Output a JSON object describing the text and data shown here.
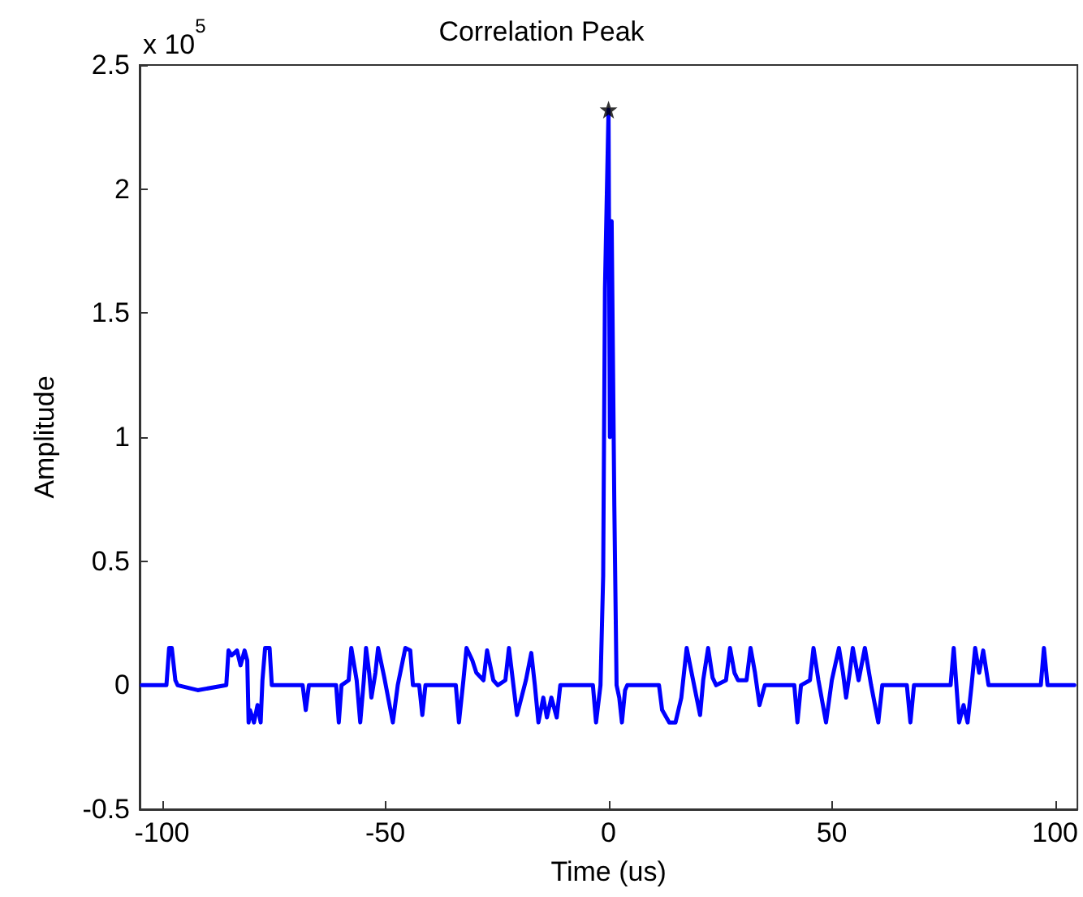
{
  "chart_data": {
    "type": "line",
    "title": "Correlation Peak",
    "xlabel": "Time (us)",
    "ylabel": "Amplitude",
    "annotations": [
      "x 10$^{5}$"
    ],
    "xlim": [
      -105,
      105
    ],
    "xticks": [
      -100,
      -50,
      0,
      50,
      100
    ],
    "ylim": [
      -0.5,
      2.5
    ],
    "yticks": [
      -0.5,
      0,
      0.5,
      1,
      1.5,
      2,
      2.5
    ],
    "grid": false,
    "series": [
      {
        "color": "#0000ff",
        "marker": "none",
        "line_style": "solid",
        "x": [
          -104.5,
          -99,
          -98.4,
          -97.8,
          -97,
          -96.5,
          -92,
          -85.6,
          -85.1,
          -84.4,
          -83.2,
          -82.4,
          -81.5,
          -80.9,
          -80.6,
          -80.3,
          -79.4,
          -78.6,
          -77.9,
          -77.5,
          -76.9,
          -75.9,
          -75.4,
          -68.5,
          -67.8,
          -67.1,
          -61,
          -60.4,
          -59.8,
          -58.2,
          -57.6,
          -56.4,
          -55.6,
          -54.8,
          -54.3,
          -53.6,
          -53.1,
          -52.2,
          -51.6,
          -50.2,
          -48.3,
          -47.2,
          -45.5,
          -44.4,
          -43.8,
          -42.4,
          -41.7,
          -41,
          -34.2,
          -33.5,
          -32.5,
          -31.8,
          -30.5,
          -29.6,
          -28,
          -27.2,
          -25.8,
          -24.8,
          -23.1,
          -22.3,
          -21.3,
          -20.5,
          -18.5,
          -17.3,
          -16.5,
          -15.7,
          -14.6,
          -13.8,
          -12.8,
          -11.6,
          -10.8,
          -3.5,
          -2.8,
          -1.8,
          -1.2,
          -0.8,
          0,
          0.3,
          0.7,
          1.3,
          1.8,
          2.4,
          3,
          3.7,
          4.2,
          11.3,
          12,
          13.6,
          15,
          16.3,
          17.5,
          18.6,
          20.5,
          21.2,
          22.3,
          23.3,
          24.1,
          26.3,
          27.2,
          28.2,
          29,
          30.9,
          31.8,
          32.8,
          33.8,
          35,
          41.6,
          42.3,
          43.1,
          45.1,
          45.9,
          47,
          48.7,
          50,
          51.6,
          52.5,
          53.2,
          54,
          54.7,
          56,
          57.4,
          58.8,
          60.4,
          61.3,
          66.8,
          67.6,
          68.4,
          76.6,
          77.3,
          78.5,
          79.5,
          80.4,
          81.3,
          82.1,
          83,
          83.9,
          85.1,
          96.8,
          97.5,
          98.3,
          99,
          104.3
        ],
        "values": [
          0,
          0,
          0.15,
          0.15,
          0.02,
          0,
          -0.02,
          0,
          0.14,
          0.12,
          0.14,
          0.08,
          0.14,
          0.1,
          -0.15,
          -0.1,
          -0.15,
          -0.08,
          -0.15,
          0.02,
          0.15,
          0.15,
          0,
          0,
          -0.1,
          0,
          0,
          -0.15,
          0,
          0.02,
          0.15,
          0.02,
          -0.15,
          0.02,
          0.15,
          0.05,
          -0.05,
          0.05,
          0.15,
          0.03,
          -0.15,
          0,
          0.15,
          0.14,
          0,
          0,
          -0.12,
          0,
          0,
          -0.15,
          0.02,
          0.15,
          0.1,
          0.05,
          0.02,
          0.14,
          0.02,
          0,
          0.02,
          0.15,
          0,
          -0.12,
          0.02,
          0.13,
          0,
          -0.15,
          -0.05,
          -0.13,
          -0.05,
          -0.13,
          0,
          0,
          -0.15,
          0,
          0.44,
          1.6,
          2.32,
          1,
          1.87,
          0.72,
          0,
          -0.05,
          -0.15,
          -0.02,
          0,
          0,
          -0.1,
          -0.15,
          -0.15,
          -0.05,
          0.15,
          0.05,
          -0.12,
          0.02,
          0.15,
          0.03,
          0,
          0.02,
          0.15,
          0.05,
          0.02,
          0.02,
          0.15,
          0.05,
          -0.08,
          0,
          0,
          -0.15,
          0,
          0.02,
          0.15,
          0.02,
          -0.15,
          0.02,
          0.15,
          0.05,
          -0.05,
          0.05,
          0.15,
          0.02,
          0.15,
          0,
          -0.15,
          0,
          0,
          -0.15,
          0,
          0,
          0.15,
          -0.15,
          -0.08,
          -0.15,
          0,
          0.15,
          0.05,
          0.14,
          0,
          0,
          0.15,
          0,
          0,
          0
        ]
      },
      {
        "type": "scatter",
        "color": "#000000",
        "marker": "star",
        "x": [
          0
        ],
        "values": [
          2.32
        ]
      }
    ]
  }
}
